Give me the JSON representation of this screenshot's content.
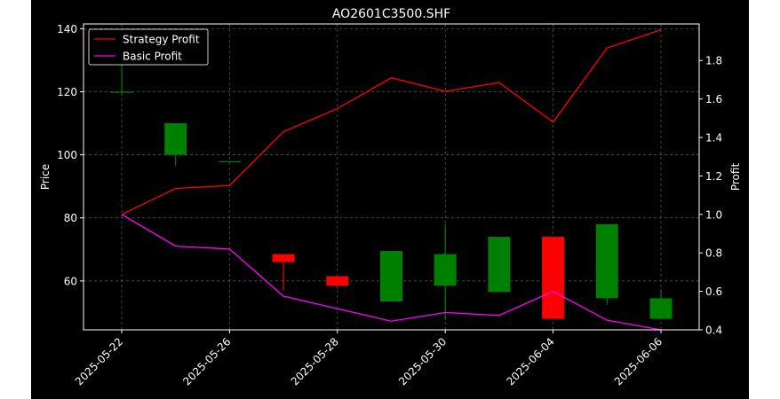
{
  "chart_data": {
    "type": "candlestick",
    "title": "AO2601C3500.SHF",
    "ylabel": "Price",
    "y2label": "Profit",
    "ylim": [
      44.5,
      141.5
    ],
    "y2lim": [
      0.4,
      1.99
    ],
    "yticks": [
      60,
      80,
      100,
      120,
      140
    ],
    "y2ticks": [
      0.4,
      0.6,
      0.8,
      1.0,
      1.2,
      1.4,
      1.6,
      1.8
    ],
    "x_tick_labels": [
      "2025-05-22",
      "2025-05-26",
      "2025-05-28",
      "2025-05-30",
      "2025-06-04",
      "2025-06-06"
    ],
    "x_tick_index": [
      0,
      2,
      4,
      6,
      8,
      10
    ],
    "grid": true,
    "legend_position": "top-left",
    "candles": [
      {
        "open": 120,
        "close": 120,
        "high": 140,
        "low": 120
      },
      {
        "open": 100,
        "close": 110,
        "high": 110,
        "low": 96.5
      },
      {
        "open": 98,
        "close": 98,
        "high": 98,
        "low": 98
      },
      {
        "open": 68.5,
        "close": 66,
        "high": 68.5,
        "low": 57
      },
      {
        "open": 61.5,
        "close": 58.5,
        "high": 61.5,
        "low": 57.5
      },
      {
        "open": 53.5,
        "close": 69.5,
        "high": 69.5,
        "low": 53.5
      },
      {
        "open": 58.5,
        "close": 68.5,
        "high": 78,
        "low": 47.5
      },
      {
        "open": 56.5,
        "close": 74,
        "high": 74,
        "low": 56.5
      },
      {
        "open": 74,
        "close": 48,
        "high": 74,
        "low": 48
      },
      {
        "open": 54.5,
        "close": 78,
        "high": 78,
        "low": 52.5
      },
      {
        "open": 48,
        "close": 54.5,
        "high": 57.5,
        "low": 48
      }
    ],
    "series": [
      {
        "name": "Strategy Profit",
        "color": "#ff0000",
        "axis": "right",
        "values": [
          1.0,
          1.135,
          1.15,
          1.43,
          1.55,
          1.71,
          1.64,
          1.685,
          1.48,
          1.865,
          1.96
        ]
      },
      {
        "name": "Basic Profit",
        "color": "#ff00ff",
        "axis": "right",
        "values": [
          1.0,
          0.835,
          0.82,
          0.575,
          0.51,
          0.445,
          0.49,
          0.475,
          0.6,
          0.45,
          0.4
        ]
      }
    ],
    "colors": {
      "up": "#008000",
      "down": "#ff0000",
      "background": "#000000",
      "text": "#ffffff"
    }
  }
}
